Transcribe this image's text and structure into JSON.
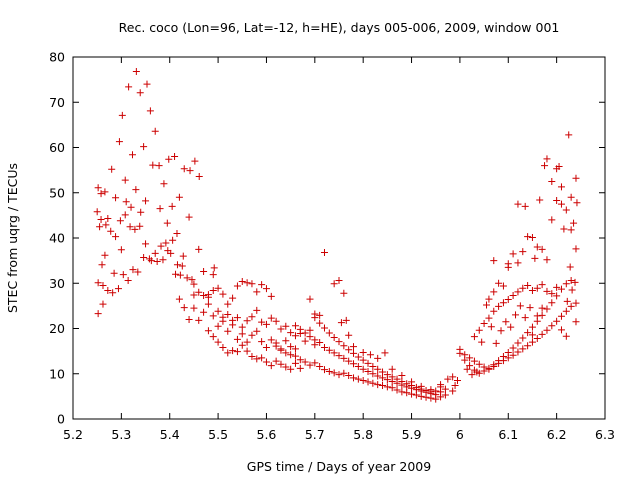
{
  "chart_data": {
    "type": "scatter",
    "title": "Rec. coco (Lon=96, Lat=-12, h=HE), days 005-006, 2009, window 001",
    "xlabel": "GPS time / Days of year 2009",
    "ylabel": "STEC from uqrg / TECUs",
    "xlim": [
      5.2,
      6.3
    ],
    "ylim": [
      0,
      80
    ],
    "xticks": [
      "5.2",
      "5.3",
      "5.4",
      "5.5",
      "5.6",
      "5.7",
      "5.8",
      "5.9",
      "6",
      "6.1",
      "6.2",
      "6.3"
    ],
    "yticks": [
      "0",
      "10",
      "20",
      "30",
      "40",
      "50",
      "60",
      "70",
      "80"
    ],
    "grid": false,
    "marker": "+",
    "marker_color": "#cc0000",
    "points": [
      [
        5.252,
        51.1
      ],
      [
        5.258,
        49.8
      ],
      [
        5.266,
        50.2
      ],
      [
        5.272,
        44.3
      ],
      [
        5.28,
        55.2
      ],
      [
        5.288,
        48.9
      ],
      [
        5.296,
        61.3
      ],
      [
        5.302,
        67.1
      ],
      [
        5.308,
        52.8
      ],
      [
        5.315,
        73.4
      ],
      [
        5.323,
        58.4
      ],
      [
        5.331,
        76.8
      ],
      [
        5.339,
        72.1
      ],
      [
        5.346,
        60.2
      ],
      [
        5.353,
        74.0
      ],
      [
        5.36,
        68.1
      ],
      [
        5.37,
        63.6
      ],
      [
        5.378,
        56.0
      ],
      [
        5.388,
        52.0
      ],
      [
        5.398,
        57.4
      ],
      [
        5.41,
        58.0
      ],
      [
        5.42,
        49.0
      ],
      [
        5.43,
        55.3
      ],
      [
        5.442,
        54.9
      ],
      [
        5.452,
        57.0
      ],
      [
        5.461,
        53.6
      ],
      [
        5.25,
        45.8
      ],
      [
        5.258,
        44.1
      ],
      [
        5.268,
        42.9
      ],
      [
        5.278,
        41.5
      ],
      [
        5.288,
        40.3
      ],
      [
        5.298,
        43.8
      ],
      [
        5.308,
        45.1
      ],
      [
        5.318,
        42.5
      ],
      [
        5.328,
        41.9
      ],
      [
        5.338,
        42.6
      ],
      [
        5.35,
        38.7
      ],
      [
        5.362,
        35.0
      ],
      [
        5.374,
        34.8
      ],
      [
        5.386,
        35.2
      ],
      [
        5.396,
        37.2
      ],
      [
        5.406,
        39.5
      ],
      [
        5.416,
        34.1
      ],
      [
        5.426,
        33.8
      ],
      [
        5.436,
        31.2
      ],
      [
        5.446,
        30.8
      ],
      [
        5.252,
        30.1
      ],
      [
        5.262,
        29.5
      ],
      [
        5.272,
        28.4
      ],
      [
        5.282,
        27.9
      ],
      [
        5.294,
        28.8
      ],
      [
        5.304,
        31.9
      ],
      [
        5.314,
        30.6
      ],
      [
        5.324,
        33.0
      ],
      [
        5.334,
        32.5
      ],
      [
        5.346,
        35.7
      ],
      [
        5.358,
        35.4
      ],
      [
        5.37,
        36.6
      ],
      [
        5.382,
        38.2
      ],
      [
        5.392,
        38.9
      ],
      [
        5.402,
        36.6
      ],
      [
        5.412,
        32.0
      ],
      [
        5.422,
        31.8
      ],
      [
        5.26,
        34.1
      ],
      [
        5.262,
        25.4
      ],
      [
        5.252,
        23.3
      ],
      [
        5.255,
        42.5
      ],
      [
        5.266,
        36.2
      ],
      [
        5.285,
        32.2
      ],
      [
        5.3,
        37.4
      ],
      [
        5.31,
        48.0
      ],
      [
        5.32,
        46.8
      ],
      [
        5.33,
        50.7
      ],
      [
        5.34,
        45.7
      ],
      [
        5.35,
        48.2
      ],
      [
        5.365,
        56.1
      ],
      [
        5.38,
        46.5
      ],
      [
        5.395,
        43.3
      ],
      [
        5.405,
        47.0
      ],
      [
        5.415,
        41.0
      ],
      [
        5.428,
        36.0
      ],
      [
        5.44,
        44.6
      ],
      [
        5.45,
        27.4
      ],
      [
        5.46,
        37.5
      ],
      [
        5.47,
        32.6
      ],
      [
        5.48,
        27.5
      ],
      [
        5.49,
        31.9
      ],
      [
        5.492,
        33.4
      ],
      [
        5.42,
        26.5
      ],
      [
        5.43,
        24.6
      ],
      [
        5.44,
        22.0
      ],
      [
        5.45,
        24.5
      ],
      [
        5.46,
        21.8
      ],
      [
        5.47,
        23.6
      ],
      [
        5.48,
        25.4
      ],
      [
        5.49,
        22.8
      ],
      [
        5.5,
        20.5
      ],
      [
        5.51,
        21.6
      ],
      [
        5.52,
        19.4
      ],
      [
        5.53,
        20.8
      ],
      [
        5.54,
        17.6
      ],
      [
        5.55,
        18.8
      ],
      [
        5.56,
        17.0
      ],
      [
        5.57,
        18.5
      ],
      [
        5.58,
        19.4
      ],
      [
        5.59,
        17.1
      ],
      [
        5.6,
        15.8
      ],
      [
        5.61,
        17.5
      ],
      [
        5.62,
        16.8
      ],
      [
        5.63,
        15.2
      ],
      [
        5.64,
        17.3
      ],
      [
        5.65,
        16.0
      ],
      [
        5.66,
        15.5
      ],
      [
        5.45,
        29.8
      ],
      [
        5.46,
        28.0
      ],
      [
        5.47,
        27.3
      ],
      [
        5.48,
        26.9
      ],
      [
        5.49,
        28.4
      ],
      [
        5.5,
        28.9
      ],
      [
        5.51,
        27.6
      ],
      [
        5.52,
        25.4
      ],
      [
        5.53,
        26.7
      ],
      [
        5.54,
        29.4
      ],
      [
        5.55,
        30.4
      ],
      [
        5.56,
        30.1
      ],
      [
        5.57,
        29.9
      ],
      [
        5.58,
        28.1
      ],
      [
        5.59,
        29.7
      ],
      [
        5.6,
        28.8
      ],
      [
        5.61,
        27.1
      ],
      [
        5.48,
        19.5
      ],
      [
        5.49,
        18.2
      ],
      [
        5.5,
        17.0
      ],
      [
        5.51,
        15.8
      ],
      [
        5.52,
        14.6
      ],
      [
        5.53,
        15.1
      ],
      [
        5.54,
        14.9
      ],
      [
        5.55,
        16.3
      ],
      [
        5.56,
        15.0
      ],
      [
        5.57,
        13.8
      ],
      [
        5.58,
        13.3
      ],
      [
        5.59,
        13.5
      ],
      [
        5.6,
        12.6
      ],
      [
        5.61,
        11.8
      ],
      [
        5.62,
        12.8
      ],
      [
        5.63,
        12.1
      ],
      [
        5.64,
        11.5
      ],
      [
        5.65,
        11.0
      ],
      [
        5.66,
        12.3
      ],
      [
        5.67,
        11.2
      ],
      [
        5.5,
        23.8
      ],
      [
        5.51,
        22.5
      ],
      [
        5.52,
        23.1
      ],
      [
        5.53,
        21.8
      ],
      [
        5.54,
        22.4
      ],
      [
        5.55,
        20.3
      ],
      [
        5.56,
        21.7
      ],
      [
        5.57,
        22.6
      ],
      [
        5.58,
        24.0
      ],
      [
        5.59,
        21.4
      ],
      [
        5.6,
        20.9
      ],
      [
        5.61,
        22.3
      ],
      [
        5.62,
        21.6
      ],
      [
        5.63,
        19.9
      ],
      [
        5.64,
        20.5
      ],
      [
        5.65,
        19.1
      ],
      [
        5.66,
        18.4
      ],
      [
        5.67,
        18.9
      ],
      [
        5.68,
        17.2
      ],
      [
        5.69,
        19.6
      ],
      [
        5.7,
        16.4
      ],
      [
        5.62,
        16.1
      ],
      [
        5.63,
        15.5
      ],
      [
        5.64,
        14.6
      ],
      [
        5.65,
        14.2
      ],
      [
        5.66,
        13.9
      ],
      [
        5.67,
        13.1
      ],
      [
        5.68,
        12.6
      ],
      [
        5.69,
        11.9
      ],
      [
        5.7,
        12.4
      ],
      [
        5.71,
        11.6
      ],
      [
        5.72,
        10.9
      ],
      [
        5.73,
        10.5
      ],
      [
        5.74,
        10.2
      ],
      [
        5.75,
        9.8
      ],
      [
        5.76,
        10.1
      ],
      [
        5.77,
        9.6
      ],
      [
        5.78,
        9.1
      ],
      [
        5.79,
        8.8
      ],
      [
        5.8,
        8.5
      ],
      [
        5.81,
        8.2
      ],
      [
        5.82,
        7.9
      ],
      [
        5.83,
        7.6
      ],
      [
        5.84,
        7.4
      ],
      [
        5.85,
        7.1
      ],
      [
        5.86,
        6.9
      ],
      [
        5.87,
        6.4
      ],
      [
        5.88,
        6.0
      ],
      [
        5.89,
        5.8
      ],
      [
        5.9,
        5.5
      ],
      [
        5.91,
        5.3
      ],
      [
        5.92,
        5.0
      ],
      [
        5.93,
        4.8
      ],
      [
        5.94,
        4.6
      ],
      [
        5.95,
        4.4
      ],
      [
        5.96,
        4.9
      ],
      [
        5.97,
        5.3
      ],
      [
        5.66,
        20.6
      ],
      [
        5.67,
        19.8
      ],
      [
        5.68,
        19.0
      ],
      [
        5.69,
        18.2
      ],
      [
        5.7,
        17.5
      ],
      [
        5.71,
        16.9
      ],
      [
        5.72,
        15.8
      ],
      [
        5.73,
        15.2
      ],
      [
        5.74,
        14.6
      ],
      [
        5.75,
        14.0
      ],
      [
        5.76,
        13.4
      ],
      [
        5.77,
        12.8
      ],
      [
        5.78,
        12.2
      ],
      [
        5.79,
        11.6
      ],
      [
        5.8,
        11.0
      ],
      [
        5.81,
        10.5
      ],
      [
        5.82,
        10.0
      ],
      [
        5.83,
        9.5
      ],
      [
        5.84,
        9.1
      ],
      [
        5.85,
        8.7
      ],
      [
        5.86,
        8.3
      ],
      [
        5.87,
        7.9
      ],
      [
        5.88,
        7.5
      ],
      [
        5.89,
        7.1
      ],
      [
        5.9,
        6.8
      ],
      [
        5.91,
        6.5
      ],
      [
        5.92,
        6.2
      ],
      [
        5.93,
        5.9
      ],
      [
        5.94,
        5.6
      ],
      [
        5.95,
        5.4
      ],
      [
        5.96,
        6.0
      ],
      [
        5.97,
        6.6
      ],
      [
        5.7,
        22.4
      ],
      [
        5.71,
        21.2
      ],
      [
        5.72,
        20.1
      ],
      [
        5.73,
        19.0
      ],
      [
        5.74,
        18.0
      ],
      [
        5.75,
        17.1
      ],
      [
        5.76,
        16.2
      ],
      [
        5.77,
        15.3
      ],
      [
        5.78,
        14.5
      ],
      [
        5.79,
        13.7
      ],
      [
        5.8,
        13.0
      ],
      [
        5.81,
        12.3
      ],
      [
        5.82,
        11.6
      ],
      [
        5.83,
        11.0
      ],
      [
        5.84,
        10.4
      ],
      [
        5.85,
        9.8
      ],
      [
        5.86,
        9.3
      ],
      [
        5.87,
        8.8
      ],
      [
        5.88,
        8.3
      ],
      [
        5.89,
        7.8
      ],
      [
        5.9,
        7.4
      ],
      [
        5.91,
        7.0
      ],
      [
        5.92,
        6.6
      ],
      [
        5.93,
        6.3
      ],
      [
        5.94,
        6.0
      ],
      [
        5.95,
        6.2
      ],
      [
        5.96,
        7.1
      ],
      [
        5.69,
        26.5
      ],
      [
        5.7,
        23.2
      ],
      [
        5.71,
        22.9
      ],
      [
        5.72,
        36.8
      ],
      [
        5.74,
        29.9
      ],
      [
        5.75,
        30.6
      ],
      [
        5.76,
        27.8
      ],
      [
        5.755,
        21.3
      ],
      [
        5.765,
        21.8
      ],
      [
        5.77,
        18.5
      ],
      [
        5.78,
        16.0
      ],
      [
        5.8,
        14.7
      ],
      [
        5.815,
        14.2
      ],
      [
        5.83,
        13.4
      ],
      [
        5.845,
        14.6
      ],
      [
        5.86,
        11.0
      ],
      [
        5.88,
        9.6
      ],
      [
        5.9,
        8.2
      ],
      [
        5.92,
        7.2
      ],
      [
        5.94,
        6.5
      ],
      [
        5.96,
        7.6
      ],
      [
        5.975,
        8.8
      ],
      [
        5.985,
        9.3
      ],
      [
        5.99,
        7.4
      ],
      [
        5.985,
        6.2
      ],
      [
        5.995,
        8.5
      ],
      [
        6.0,
        15.4
      ],
      [
        6.01,
        14.2
      ],
      [
        6.02,
        13.5
      ],
      [
        6.03,
        12.8
      ],
      [
        6.04,
        12.1
      ],
      [
        6.05,
        11.5
      ],
      [
        6.06,
        11.0
      ],
      [
        6.07,
        11.6
      ],
      [
        6.08,
        12.3
      ],
      [
        6.09,
        12.9
      ],
      [
        6.1,
        13.5
      ],
      [
        6.11,
        14.1
      ],
      [
        6.12,
        14.8
      ],
      [
        6.13,
        15.5
      ],
      [
        6.14,
        16.2
      ],
      [
        6.15,
        17.0
      ],
      [
        6.16,
        17.8
      ],
      [
        6.17,
        18.7
      ],
      [
        6.18,
        19.6
      ],
      [
        6.19,
        20.6
      ],
      [
        6.2,
        21.6
      ],
      [
        6.21,
        22.7
      ],
      [
        6.22,
        23.8
      ],
      [
        6.23,
        24.9
      ],
      [
        6.24,
        25.6
      ],
      [
        6.0,
        14.5
      ],
      [
        6.01,
        13.0
      ],
      [
        6.02,
        11.8
      ],
      [
        6.03,
        10.8
      ],
      [
        6.04,
        10.1
      ],
      [
        6.05,
        10.6
      ],
      [
        6.06,
        11.2
      ],
      [
        6.07,
        12.0
      ],
      [
        6.08,
        12.9
      ],
      [
        6.09,
        13.8
      ],
      [
        6.1,
        14.7
      ],
      [
        6.11,
        15.7
      ],
      [
        6.12,
        16.8
      ],
      [
        6.13,
        17.9
      ],
      [
        6.14,
        19.1
      ],
      [
        6.15,
        20.3
      ],
      [
        6.16,
        21.6
      ],
      [
        6.17,
        22.9
      ],
      [
        6.18,
        24.3
      ],
      [
        6.19,
        25.7
      ],
      [
        6.2,
        27.2
      ],
      [
        6.21,
        28.7
      ],
      [
        6.22,
        29.9
      ],
      [
        6.23,
        30.6
      ],
      [
        6.03,
        18.2
      ],
      [
        6.04,
        19.6
      ],
      [
        6.05,
        21.1
      ],
      [
        6.06,
        22.3
      ],
      [
        6.07,
        23.8
      ],
      [
        6.08,
        24.9
      ],
      [
        6.09,
        25.7
      ],
      [
        6.1,
        26.4
      ],
      [
        6.11,
        27.3
      ],
      [
        6.12,
        28.1
      ],
      [
        6.13,
        28.9
      ],
      [
        6.14,
        29.5
      ],
      [
        6.15,
        28.4
      ],
      [
        6.16,
        28.9
      ],
      [
        6.17,
        29.7
      ],
      [
        6.18,
        28.2
      ],
      [
        6.19,
        27.7
      ],
      [
        6.2,
        29.1
      ],
      [
        6.06,
        26.5
      ],
      [
        6.07,
        28.1
      ],
      [
        6.08,
        30.0
      ],
      [
        6.09,
        29.4
      ],
      [
        6.1,
        33.5
      ],
      [
        6.11,
        36.5
      ],
      [
        6.12,
        34.5
      ],
      [
        6.13,
        37.0
      ],
      [
        6.14,
        40.3
      ],
      [
        6.15,
        40.1
      ],
      [
        6.16,
        38.0
      ],
      [
        6.17,
        37.5
      ],
      [
        6.18,
        35.2
      ],
      [
        6.19,
        44.0
      ],
      [
        6.2,
        48.3
      ],
      [
        6.21,
        47.5
      ],
      [
        6.22,
        46.2
      ],
      [
        6.23,
        41.8
      ],
      [
        6.24,
        37.6
      ],
      [
        6.07,
        35.0
      ],
      [
        6.1,
        34.3
      ],
      [
        6.12,
        47.5
      ],
      [
        6.135,
        47.0
      ],
      [
        6.155,
        35.5
      ],
      [
        6.165,
        48.4
      ],
      [
        6.175,
        56.0
      ],
      [
        6.18,
        57.5
      ],
      [
        6.19,
        52.5
      ],
      [
        6.2,
        55.3
      ],
      [
        6.205,
        55.8
      ],
      [
        6.21,
        51.3
      ],
      [
        6.215,
        42.0
      ],
      [
        6.225,
        62.8
      ],
      [
        6.23,
        49.0
      ],
      [
        6.235,
        43.3
      ],
      [
        6.24,
        53.2
      ],
      [
        6.242,
        47.8
      ],
      [
        6.238,
        30.2
      ],
      [
        6.228,
        33.6
      ],
      [
        6.222,
        26.0
      ],
      [
        6.232,
        28.5
      ],
      [
        6.24,
        21.5
      ],
      [
        6.22,
        18.3
      ],
      [
        6.21,
        19.7
      ],
      [
        6.015,
        11.0
      ],
      [
        6.025,
        9.8
      ],
      [
        6.035,
        10.4
      ],
      [
        6.045,
        17.0
      ],
      [
        6.055,
        25.2
      ],
      [
        6.065,
        20.4
      ],
      [
        6.075,
        16.7
      ],
      [
        6.085,
        19.5
      ],
      [
        6.095,
        21.5
      ],
      [
        6.105,
        20.3
      ],
      [
        6.115,
        23.0
      ],
      [
        6.125,
        25.0
      ],
      [
        6.135,
        22.4
      ],
      [
        6.145,
        24.6
      ],
      [
        6.15,
        18.6
      ],
      [
        6.16,
        22.8
      ],
      [
        6.17,
        24.5
      ]
    ]
  }
}
